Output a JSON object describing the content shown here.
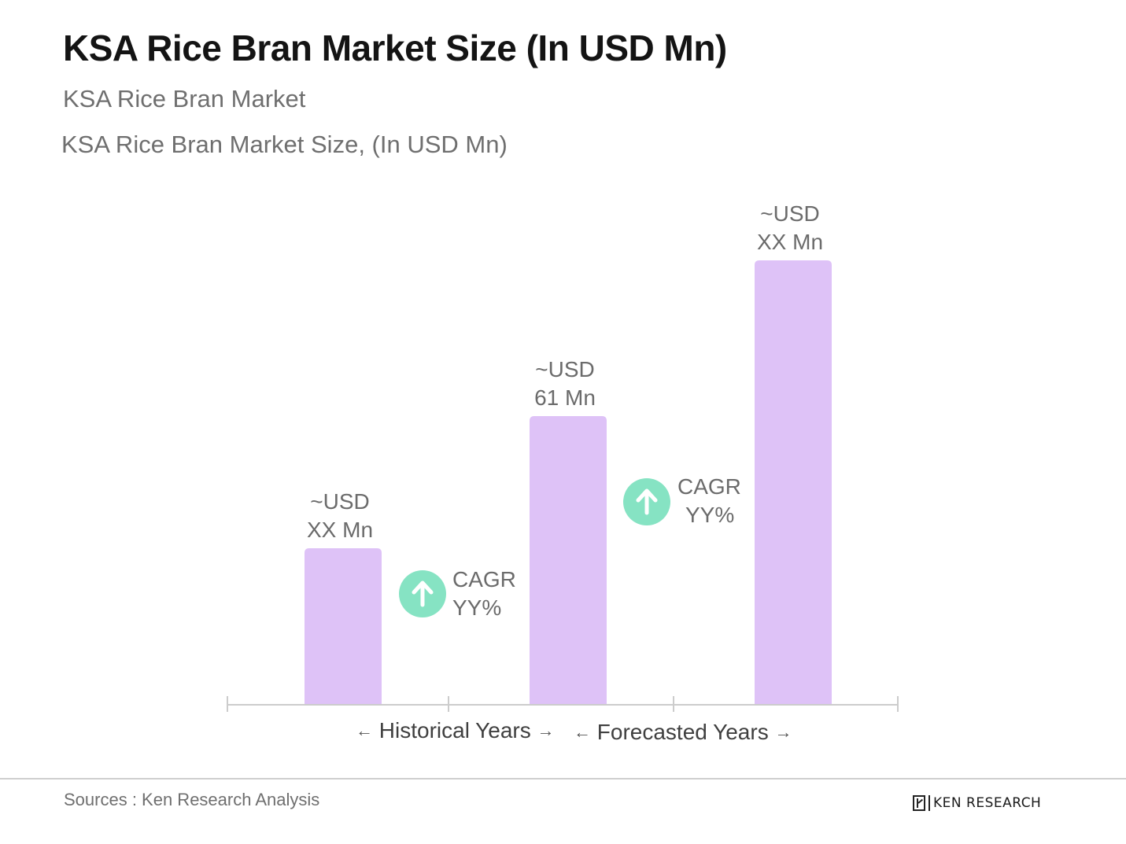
{
  "header": {
    "title": "KSA Rice Bran Market Size (In USD Mn)",
    "subtitle_1": "KSA Rice Bran Market",
    "subtitle_2": "KSA Rice Bran Market Size, (In USD Mn)"
  },
  "chart_data": {
    "type": "bar",
    "title": "KSA Rice Bran Market Size, (In USD Mn)",
    "xlabel": "",
    "ylabel": "",
    "categories": [
      "",
      "",
      ""
    ],
    "values": [
      33,
      61,
      94
    ],
    "data_labels": [
      [
        "~USD",
        "XX Mn"
      ],
      [
        "~USD",
        "61 Mn"
      ],
      [
        "~USD",
        "XX Mn"
      ]
    ],
    "annotations": [
      {
        "between": [
          0,
          1
        ],
        "lines": [
          "CAGR",
          "YY%"
        ]
      },
      {
        "between": [
          1,
          2
        ],
        "lines": [
          "CAGR",
          "YY%"
        ]
      }
    ],
    "periods": [
      {
        "label": "Historical Years"
      },
      {
        "label": "Forecasted Years"
      }
    ],
    "grid": false,
    "legend": "none",
    "colors": {
      "bar": "#dec2f7",
      "cagr_circle": "#86e3c3",
      "axis": "#cccccc",
      "label_text": "#6b6b6b"
    }
  },
  "footer": {
    "source": "Sources : Ken Research Analysis",
    "logo_text": "KEN RESEARCH"
  },
  "icons": {
    "period_left_arrow": "←",
    "period_right_arrow": "→",
    "cagr_icon": "arrow-up-circle-icon"
  }
}
